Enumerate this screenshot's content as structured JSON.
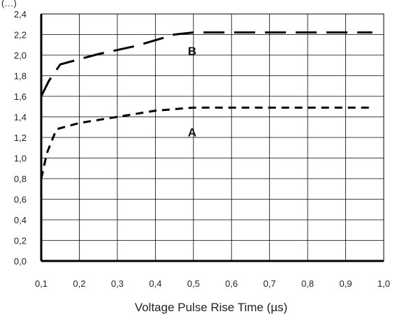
{
  "chart_data": {
    "type": "line",
    "title": "",
    "xlabel": "Voltage Pulse Rise Time (µs)",
    "ylabel": "",
    "ylabel_fragment": "(…)",
    "xlim": [
      0.1,
      1.0
    ],
    "ylim": [
      0.0,
      2.4
    ],
    "grid": true,
    "legend": "none",
    "x_ticks": [
      "0,1",
      "0,2",
      "0,3",
      "0,4",
      "0,5",
      "0,6",
      "0,7",
      "0,8",
      "0,9",
      "1,0"
    ],
    "x_tick_values": [
      0.1,
      0.2,
      0.3,
      0.4,
      0.5,
      0.6,
      0.7,
      0.8,
      0.9,
      1.0
    ],
    "y_ticks": [
      "0,0",
      "0,2",
      "0,4",
      "0,6",
      "0,8",
      "1,0",
      "1,2",
      "1,4",
      "1,6",
      "1,8",
      "2,0",
      "2,2",
      "2,4"
    ],
    "y_tick_values": [
      0.0,
      0.2,
      0.4,
      0.6,
      0.8,
      1.0,
      1.2,
      1.4,
      1.6,
      1.8,
      2.0,
      2.2,
      2.4
    ],
    "series": [
      {
        "name": "A",
        "style": "short-dash",
        "color": "#000000",
        "label_at": [
          0.5,
          1.25
        ],
        "points": [
          [
            0.1,
            0.8
          ],
          [
            0.115,
            1.05
          ],
          [
            0.14,
            1.28
          ],
          [
            0.2,
            1.34
          ],
          [
            0.3,
            1.4
          ],
          [
            0.4,
            1.46
          ],
          [
            0.5,
            1.49
          ],
          [
            0.97,
            1.49
          ]
        ]
      },
      {
        "name": "B",
        "style": "long-dash",
        "color": "#000000",
        "label_at": [
          0.5,
          2.04
        ],
        "points": [
          [
            0.1,
            1.6
          ],
          [
            0.12,
            1.75
          ],
          [
            0.15,
            1.91
          ],
          [
            0.25,
            2.01
          ],
          [
            0.35,
            2.09
          ],
          [
            0.45,
            2.2
          ],
          [
            0.5,
            2.22
          ],
          [
            0.97,
            2.22
          ]
        ]
      }
    ]
  }
}
